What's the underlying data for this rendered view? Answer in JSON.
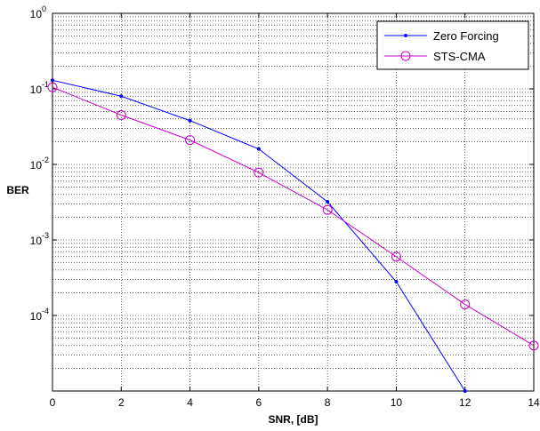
{
  "chart_data": {
    "type": "line",
    "title": "",
    "xlabel": "SNR, [dB]",
    "ylabel": "BER",
    "x_scale": "linear",
    "y_scale": "log",
    "xlim": [
      0,
      14
    ],
    "ylim": [
      1e-05,
      1
    ],
    "grid": "on (major and minor, dotted)",
    "legend_position": "top-right",
    "x_ticks": [
      "0",
      "2",
      "4",
      "6",
      "8",
      "10",
      "12",
      "14"
    ],
    "y_ticks": [
      {
        "base": "10",
        "exp": "0",
        "value": 1
      },
      {
        "base": "10",
        "exp": "-1",
        "value": 0.1
      },
      {
        "base": "10",
        "exp": "-2",
        "value": 0.01
      },
      {
        "base": "10",
        "exp": "-3",
        "value": 0.001
      },
      {
        "base": "10",
        "exp": "-4",
        "value": 0.0001
      }
    ],
    "series": [
      {
        "name": "Zero Forcing",
        "color": "#0000ff",
        "marker": "dot",
        "x": [
          0,
          2,
          4,
          6,
          8,
          10,
          12
        ],
        "y": [
          0.13,
          0.08,
          0.038,
          0.016,
          0.0032,
          0.00028,
          1e-05
        ]
      },
      {
        "name": "STS-CMA",
        "color": "#cc00cc",
        "marker": "circle",
        "x": [
          0,
          2,
          4,
          6,
          8,
          10,
          12,
          14
        ],
        "y": [
          0.105,
          0.045,
          0.021,
          0.0078,
          0.0025,
          0.0006,
          0.00014,
          4e-05
        ]
      }
    ]
  }
}
